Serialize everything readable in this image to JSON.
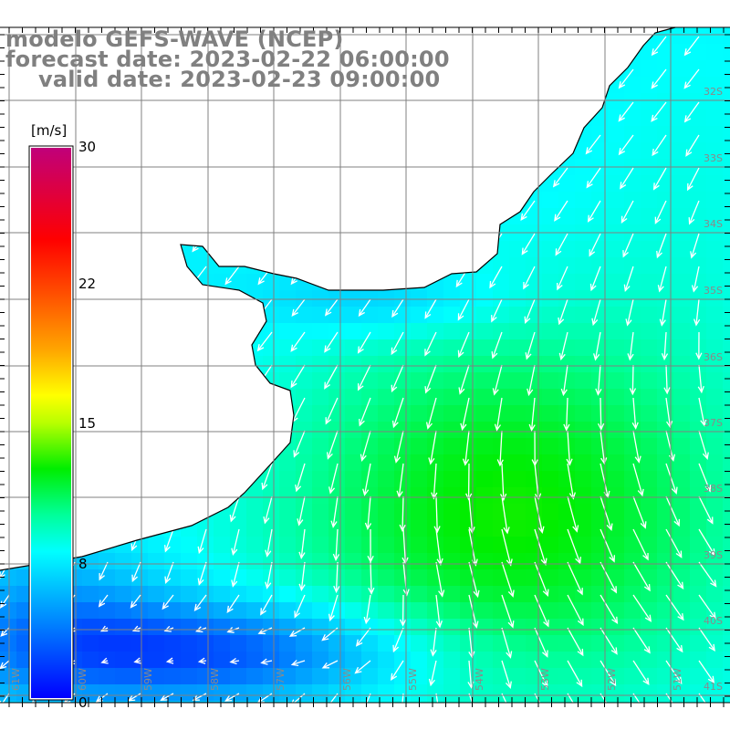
{
  "header": {
    "model": "modelo GEFS-WAVE (NCEP)",
    "forecast": "forecast date: 2023-02-22 06:00:00",
    "valid": "valid date: 2023-02-23 09:00:00"
  },
  "colorbar": {
    "unit": "[m/s]",
    "ticks": [
      "30",
      "22",
      "15",
      "8",
      "0"
    ],
    "tick_values": [
      30,
      22,
      15,
      8,
      0
    ],
    "stops": [
      {
        "v": 0,
        "c": "#0000ff"
      },
      {
        "v": 4,
        "c": "#0080ff"
      },
      {
        "v": 8,
        "c": "#00ffff"
      },
      {
        "v": 10,
        "c": "#00ff99"
      },
      {
        "v": 12.5,
        "c": "#00ee00"
      },
      {
        "v": 15,
        "c": "#b8ff00"
      },
      {
        "v": 16.5,
        "c": "#ffff00"
      },
      {
        "v": 19,
        "c": "#ffa500"
      },
      {
        "v": 22,
        "c": "#ff5000"
      },
      {
        "v": 25,
        "c": "#ff0000"
      },
      {
        "v": 30,
        "c": "#c0007a"
      }
    ]
  },
  "map": {
    "latitudes": [
      "32S",
      "33S",
      "34S",
      "35S",
      "36S",
      "37S",
      "38S",
      "39S",
      "40S",
      "41S"
    ],
    "longitudes": [
      "61W",
      "60W",
      "59W",
      "58W",
      "57W",
      "56W",
      "55W",
      "54W",
      "53W",
      "52W",
      "51W"
    ],
    "land_color": "#ffffff",
    "coast_color": "#000000",
    "grid_color": "#808080"
  }
}
